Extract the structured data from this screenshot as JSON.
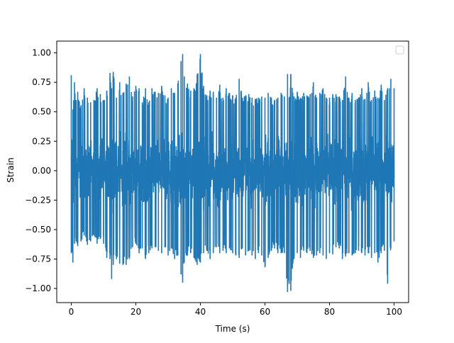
{
  "chart_data": {
    "type": "line",
    "title": "",
    "xlabel": "Time (s)",
    "ylabel": "Strain",
    "xlim": [
      -4.5,
      104.5
    ],
    "ylim": [
      -1.12,
      1.1
    ],
    "xticks": [
      0,
      20,
      40,
      60,
      80,
      100
    ],
    "yticks": [
      -1.0,
      -0.75,
      -0.5,
      -0.25,
      0.0,
      0.25,
      0.5,
      0.75,
      1.0
    ],
    "xtick_labels": [
      "0",
      "20",
      "40",
      "60",
      "80",
      "100"
    ],
    "ytick_labels": [
      "−1.00",
      "−0.75",
      "−0.50",
      "−0.25",
      "0.00",
      "0.25",
      "0.50",
      "0.75",
      "1.00"
    ],
    "grid": false,
    "legend": {
      "placement": "top-right",
      "entries": []
    },
    "series": [
      {
        "color": "#1f77b4",
        "x": [
          0,
          0.5,
          1,
          1.5,
          2,
          3,
          4,
          5,
          6,
          7,
          8,
          9,
          10,
          11,
          12,
          12.5,
          13,
          14,
          15,
          16,
          17,
          18,
          19,
          20,
          21,
          22,
          23,
          24,
          25,
          26,
          27,
          28,
          29,
          30,
          31,
          32,
          33,
          34,
          34.5,
          35,
          36,
          37,
          38,
          39,
          40,
          41,
          42,
          43,
          44,
          45,
          46,
          47,
          48,
          49,
          50,
          51,
          52,
          53,
          54,
          55,
          56,
          57,
          58,
          59,
          60,
          61,
          62,
          63,
          64,
          65,
          66,
          67,
          67.5,
          68,
          69,
          70,
          71,
          72,
          73,
          74,
          75,
          76,
          77,
          78,
          79,
          80,
          81,
          82,
          83,
          84,
          85,
          86,
          87,
          88,
          89,
          90,
          91,
          92,
          93,
          94,
          95,
          96,
          97,
          98,
          99,
          100
        ],
        "upper": [
          0.81,
          0.52,
          0.75,
          0.6,
          0.67,
          0.55,
          0.7,
          0.62,
          0.58,
          0.6,
          0.7,
          0.65,
          0.6,
          0.68,
          0.83,
          0.7,
          0.84,
          0.62,
          0.75,
          0.66,
          0.74,
          0.8,
          0.63,
          0.72,
          0.7,
          0.58,
          0.7,
          0.58,
          0.7,
          0.67,
          0.66,
          0.72,
          0.64,
          0.62,
          0.7,
          0.66,
          0.74,
          0.93,
          0.99,
          0.8,
          0.74,
          0.68,
          0.7,
          0.82,
          0.99,
          0.72,
          0.64,
          0.68,
          0.67,
          0.62,
          0.73,
          0.62,
          0.7,
          0.66,
          0.64,
          0.62,
          0.78,
          0.62,
          0.64,
          0.65,
          0.62,
          0.61,
          0.62,
          0.63,
          0.62,
          0.66,
          0.62,
          0.6,
          0.62,
          0.66,
          0.63,
          0.82,
          0.62,
          0.82,
          0.63,
          0.67,
          0.62,
          0.66,
          0.64,
          0.65,
          0.75,
          0.62,
          0.66,
          0.7,
          0.62,
          0.62,
          0.65,
          0.65,
          0.63,
          0.6,
          0.8,
          0.62,
          0.66,
          0.6,
          0.62,
          0.7,
          0.61,
          0.75,
          0.6,
          0.68,
          0.62,
          0.73,
          0.6,
          0.7,
          0.78,
          0.7
        ],
        "lower": [
          -0.7,
          -0.78,
          -0.62,
          -0.6,
          -0.64,
          -0.6,
          -0.55,
          -0.63,
          -0.6,
          -0.55,
          -0.62,
          -0.58,
          -0.62,
          -0.74,
          -0.75,
          -0.92,
          -0.8,
          -0.75,
          -0.79,
          -0.8,
          -0.8,
          -0.75,
          -0.65,
          -0.62,
          -0.7,
          -0.66,
          -0.75,
          -0.7,
          -0.66,
          -0.65,
          -0.68,
          -0.7,
          -0.65,
          -0.72,
          -0.66,
          -0.75,
          -0.72,
          -0.88,
          -0.95,
          -0.78,
          -0.72,
          -0.7,
          -0.74,
          -0.8,
          -0.78,
          -0.7,
          -0.68,
          -0.75,
          -0.7,
          -0.65,
          -0.7,
          -0.68,
          -0.7,
          -0.66,
          -0.7,
          -0.72,
          -0.74,
          -0.66,
          -0.72,
          -0.68,
          -0.72,
          -0.75,
          -0.7,
          -0.72,
          -0.82,
          -0.74,
          -0.68,
          -0.66,
          -0.7,
          -0.7,
          -0.7,
          -1.03,
          -0.96,
          -1.02,
          -0.75,
          -0.7,
          -0.74,
          -0.68,
          -0.7,
          -0.68,
          -0.74,
          -0.72,
          -0.7,
          -0.72,
          -0.75,
          -0.7,
          -0.71,
          -0.65,
          -0.66,
          -0.75,
          -0.73,
          -0.7,
          -0.72,
          -0.7,
          -0.68,
          -0.7,
          -0.72,
          -0.7,
          -0.74,
          -0.7,
          -0.78,
          -0.7,
          -0.68,
          -0.96,
          -0.66,
          -0.6
        ]
      }
    ]
  }
}
